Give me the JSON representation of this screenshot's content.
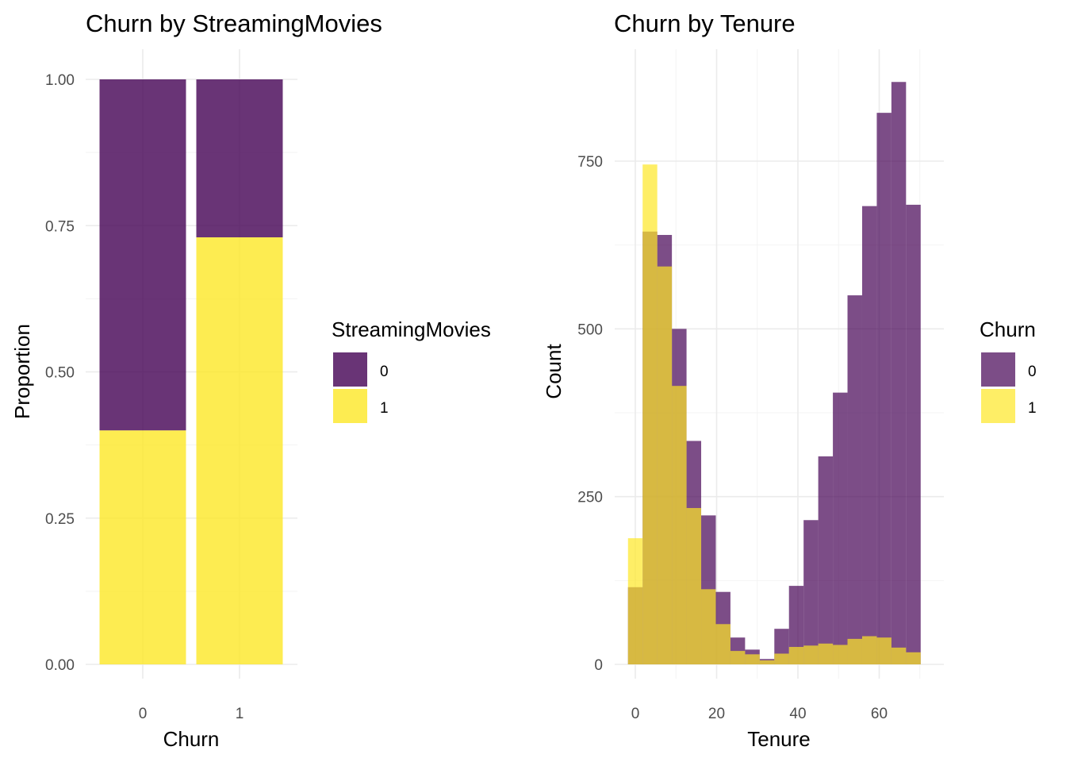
{
  "colors": {
    "purple": "#440154",
    "yellow": "#FDE725"
  },
  "chart_data": [
    {
      "type": "bar",
      "subtype": "stacked-proportion",
      "title": "Churn by StreamingMovies",
      "xlabel": "Churn",
      "ylabel": "Proportion",
      "categories": [
        "0",
        "1"
      ],
      "series": [
        {
          "name": "0",
          "values": [
            0.6,
            0.27
          ]
        },
        {
          "name": "1",
          "values": [
            0.4,
            0.73
          ]
        }
      ],
      "ylim": [
        0,
        1
      ],
      "yticks": [
        "0.00",
        "0.25",
        "0.50",
        "0.75",
        "1.00"
      ],
      "legend_title": "StreamingMovies",
      "legend": [
        "0",
        "1"
      ],
      "legend_position": "right",
      "grid": true
    },
    {
      "type": "histogram",
      "subtype": "overlapping",
      "title": "Churn by Tenure",
      "xlabel": "Tenure",
      "ylabel": "Count",
      "bin_width": 3.6,
      "bin_start": -1.8,
      "series": [
        {
          "name": "0",
          "values": [
            115,
            645,
            640,
            500,
            333,
            222,
            108,
            40,
            22,
            8,
            53,
            117,
            215,
            310,
            405,
            550,
            683,
            822,
            868,
            685
          ]
        },
        {
          "name": "1",
          "values": [
            188,
            745,
            593,
            415,
            233,
            112,
            60,
            20,
            15,
            6,
            16,
            26,
            28,
            31,
            29,
            38,
            42,
            40,
            25,
            18
          ]
        }
      ],
      "xlim": [
        -4,
        74
      ],
      "ylim": [
        0,
        870
      ],
      "xticks": [
        0,
        20,
        40,
        60
      ],
      "yticks": [
        0,
        250,
        500,
        750
      ],
      "legend_title": "Churn",
      "legend": [
        "0",
        "1"
      ],
      "legend_position": "right",
      "grid": true
    }
  ]
}
